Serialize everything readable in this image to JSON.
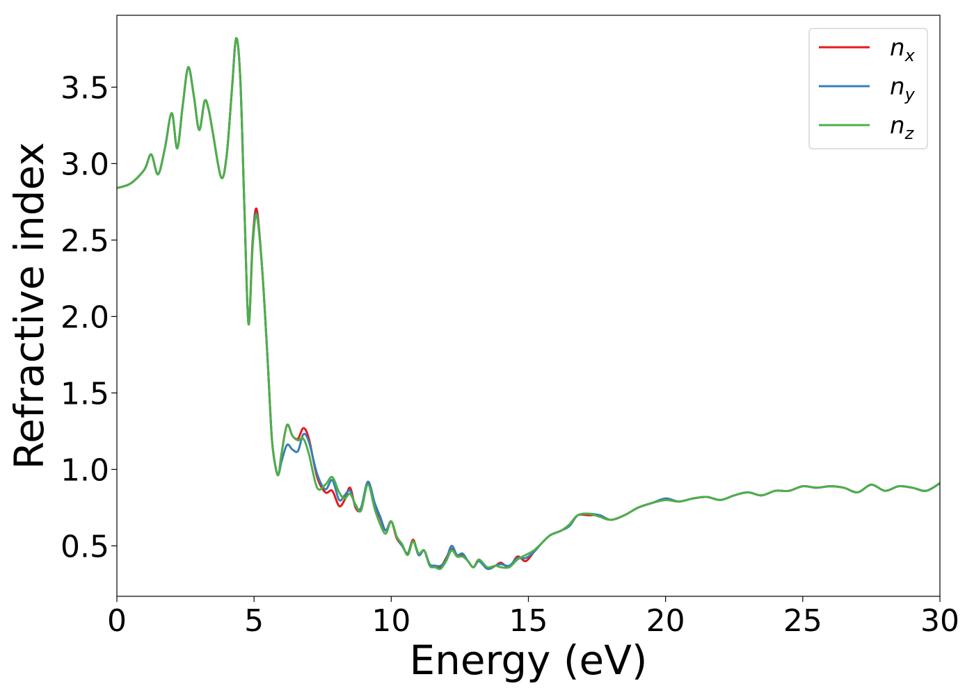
{
  "chart_data": {
    "type": "line",
    "xlabel": "Energy (eV)",
    "ylabel": "Refractive index",
    "xlim": [
      0,
      30
    ],
    "ylim": [
      0.17,
      3.97
    ],
    "xticks": [
      0,
      5,
      10,
      15,
      20,
      25,
      30
    ],
    "xtick_labels": [
      "0",
      "5",
      "10",
      "15",
      "20",
      "25",
      "30"
    ],
    "yticks": [
      0.5,
      1.0,
      1.5,
      2.0,
      2.5,
      3.0,
      3.5
    ],
    "ytick_labels": [
      "0.5",
      "1.0",
      "1.5",
      "2.0",
      "2.5",
      "3.0",
      "3.5"
    ],
    "grid": false,
    "legend_position": "top-right",
    "x": [
      0,
      0.5,
      1.0,
      1.25,
      1.5,
      1.75,
      2.0,
      2.2,
      2.4,
      2.6,
      2.8,
      3.0,
      3.2,
      3.35,
      3.5,
      3.8,
      4.0,
      4.2,
      4.35,
      4.5,
      4.65,
      4.8,
      4.95,
      5.1,
      5.3,
      5.5,
      5.65,
      5.8,
      5.9,
      6.0,
      6.2,
      6.4,
      6.6,
      6.8,
      7.0,
      7.3,
      7.6,
      7.85,
      8.1,
      8.3,
      8.5,
      8.7,
      8.9,
      9.15,
      9.4,
      9.6,
      9.8,
      10.0,
      10.2,
      10.4,
      10.6,
      10.8,
      11.0,
      11.2,
      11.4,
      11.6,
      11.8,
      12.0,
      12.2,
      12.4,
      12.6,
      12.8,
      13.0,
      13.2,
      13.5,
      13.8,
      14.0,
      14.3,
      14.6,
      14.9,
      15.2,
      15.5,
      15.8,
      16.2,
      16.5,
      16.8,
      17.2,
      17.6,
      18.0,
      18.5,
      19.0,
      19.5,
      20.0,
      20.5,
      21.0,
      21.5,
      22.0,
      22.5,
      23.0,
      23.5,
      24.0,
      24.5,
      25.0,
      25.5,
      26.0,
      26.5,
      27.0,
      27.5,
      28.0,
      28.5,
      29.0,
      29.5,
      30.0
    ],
    "series": [
      {
        "name": "n",
        "subscript": "x",
        "color": "#e41a1c",
        "values": [
          2.84,
          2.87,
          2.96,
          3.06,
          2.93,
          3.1,
          3.33,
          3.1,
          3.38,
          3.63,
          3.45,
          3.22,
          3.41,
          3.35,
          3.2,
          2.91,
          3.05,
          3.5,
          3.82,
          3.55,
          2.7,
          1.95,
          2.5,
          2.7,
          2.3,
          1.7,
          1.2,
          1.0,
          0.97,
          1.1,
          1.29,
          1.22,
          1.2,
          1.27,
          1.2,
          0.95,
          0.85,
          0.86,
          0.76,
          0.8,
          0.88,
          0.75,
          0.74,
          0.91,
          0.77,
          0.68,
          0.6,
          0.66,
          0.55,
          0.5,
          0.45,
          0.54,
          0.44,
          0.47,
          0.38,
          0.37,
          0.36,
          0.42,
          0.48,
          0.44,
          0.44,
          0.4,
          0.36,
          0.41,
          0.35,
          0.37,
          0.39,
          0.36,
          0.43,
          0.4,
          0.46,
          0.52,
          0.57,
          0.6,
          0.64,
          0.7,
          0.7,
          0.7,
          0.67,
          0.7,
          0.75,
          0.78,
          0.8,
          0.79,
          0.81,
          0.82,
          0.8,
          0.83,
          0.85,
          0.83,
          0.86,
          0.86,
          0.89,
          0.88,
          0.89,
          0.88,
          0.85,
          0.9,
          0.86,
          0.89,
          0.88,
          0.86,
          0.91
        ]
      },
      {
        "name": "n",
        "subscript": "y",
        "color": "#377eb8",
        "values": [
          2.84,
          2.87,
          2.96,
          3.06,
          2.93,
          3.1,
          3.33,
          3.1,
          3.38,
          3.63,
          3.45,
          3.22,
          3.41,
          3.35,
          3.2,
          2.91,
          3.05,
          3.5,
          3.82,
          3.55,
          2.7,
          1.95,
          2.48,
          2.67,
          2.3,
          1.7,
          1.2,
          1.0,
          0.97,
          1.05,
          1.16,
          1.13,
          1.12,
          1.23,
          1.18,
          0.97,
          0.87,
          0.93,
          0.8,
          0.83,
          0.86,
          0.76,
          0.75,
          0.92,
          0.78,
          0.69,
          0.6,
          0.66,
          0.56,
          0.5,
          0.45,
          0.53,
          0.44,
          0.47,
          0.38,
          0.37,
          0.37,
          0.41,
          0.5,
          0.44,
          0.45,
          0.4,
          0.36,
          0.4,
          0.35,
          0.37,
          0.38,
          0.37,
          0.42,
          0.42,
          0.46,
          0.52,
          0.57,
          0.6,
          0.63,
          0.7,
          0.71,
          0.7,
          0.67,
          0.7,
          0.75,
          0.78,
          0.81,
          0.79,
          0.81,
          0.82,
          0.8,
          0.83,
          0.85,
          0.83,
          0.86,
          0.86,
          0.89,
          0.88,
          0.89,
          0.88,
          0.85,
          0.9,
          0.86,
          0.89,
          0.88,
          0.86,
          0.91
        ]
      },
      {
        "name": "n",
        "subscript": "z",
        "color": "#4daf4a",
        "values": [
          2.84,
          2.87,
          2.96,
          3.06,
          2.93,
          3.1,
          3.33,
          3.1,
          3.38,
          3.63,
          3.45,
          3.22,
          3.41,
          3.35,
          3.2,
          2.91,
          3.05,
          3.5,
          3.82,
          3.55,
          2.7,
          1.95,
          2.46,
          2.66,
          2.3,
          1.7,
          1.2,
          1.0,
          0.97,
          1.1,
          1.29,
          1.22,
          1.19,
          1.2,
          1.1,
          0.88,
          0.9,
          0.95,
          0.85,
          0.81,
          0.84,
          0.77,
          0.73,
          0.9,
          0.74,
          0.64,
          0.58,
          0.66,
          0.56,
          0.51,
          0.44,
          0.53,
          0.45,
          0.47,
          0.37,
          0.36,
          0.35,
          0.4,
          0.47,
          0.43,
          0.43,
          0.4,
          0.36,
          0.41,
          0.36,
          0.37,
          0.36,
          0.36,
          0.41,
          0.44,
          0.47,
          0.52,
          0.57,
          0.6,
          0.64,
          0.7,
          0.71,
          0.69,
          0.67,
          0.7,
          0.75,
          0.78,
          0.8,
          0.79,
          0.81,
          0.82,
          0.8,
          0.83,
          0.85,
          0.83,
          0.86,
          0.86,
          0.89,
          0.88,
          0.89,
          0.88,
          0.85,
          0.9,
          0.86,
          0.89,
          0.88,
          0.86,
          0.91
        ]
      }
    ]
  }
}
